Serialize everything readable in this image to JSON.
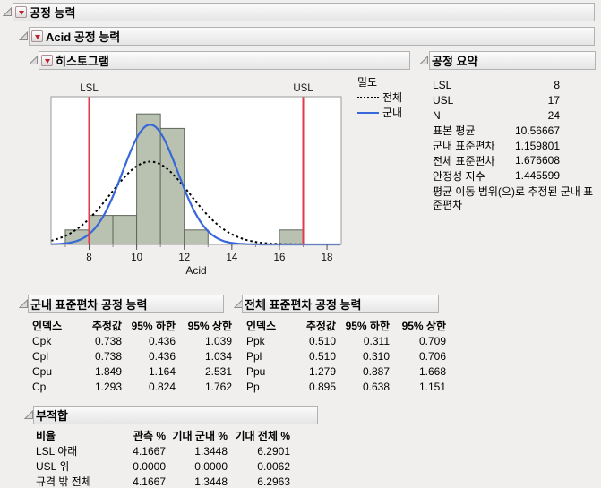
{
  "outline": {
    "level1": "공정 능력",
    "level2": "Acid 공정 능력",
    "histogram": "히스토그램",
    "summary": "공정 요약",
    "within_capability": "군내 표준편차 공정 능력",
    "overall_capability": "전체 표준편차 공정 능력",
    "nonconformance": "부적합"
  },
  "chart_data": {
    "type": "bar",
    "subtype": "histogram",
    "xlabel": "Acid",
    "x_range": [
      6.4,
      18.6
    ],
    "x_ticks": [
      8,
      10,
      12,
      14,
      16,
      18
    ],
    "minor_tick_step": 1,
    "bin_width": 1,
    "bins": [
      {
        "start": 7,
        "count": 1
      },
      {
        "start": 8,
        "count": 2
      },
      {
        "start": 9,
        "count": 2
      },
      {
        "start": 10,
        "count": 9
      },
      {
        "start": 11,
        "count": 8
      },
      {
        "start": 12,
        "count": 1
      },
      {
        "start": 16,
        "count": 1
      }
    ],
    "n": 24,
    "lsl": {
      "label": "LSL",
      "value": 8
    },
    "usl": {
      "label": "USL",
      "value": 17
    },
    "curves": [
      {
        "name": "전체",
        "mean": 10.56667,
        "sd": 1.676608,
        "style": "dotted",
        "color": "#000000"
      },
      {
        "name": "군내",
        "mean": 10.56667,
        "sd": 1.159801,
        "style": "solid",
        "color": "#3767d9"
      }
    ],
    "legend_title": "밀도",
    "colors": {
      "bar_fill": "#b9c2b0",
      "bar_stroke": "#5f675c",
      "spec_line": "#e23a4c",
      "frame": "#9a9a9a"
    }
  },
  "summary": {
    "rows": [
      {
        "label": "LSL",
        "value": "8"
      },
      {
        "label": "USL",
        "value": "17"
      },
      {
        "label": "N",
        "value": "24"
      },
      {
        "label": "표본 평균",
        "value": "10.56667"
      },
      {
        "label": "군내 표준편차",
        "value": "1.159801"
      },
      {
        "label": "전체 표준편차",
        "value": "1.676608"
      },
      {
        "label": "안정성 지수",
        "value": "1.445599"
      }
    ],
    "note": "평균 이동 범위(으)로 추정된 군내 표준편차"
  },
  "within_table": {
    "headers": [
      "인덱스",
      "추정값",
      "95% 하한",
      "95% 상한"
    ],
    "rows": [
      [
        "Cpk",
        "0.738",
        "0.436",
        "1.039"
      ],
      [
        "Cpl",
        "0.738",
        "0.436",
        "1.034"
      ],
      [
        "Cpu",
        "1.849",
        "1.164",
        "2.531"
      ],
      [
        "Cp",
        "1.293",
        "0.824",
        "1.762"
      ]
    ]
  },
  "overall_table": {
    "headers": [
      "인덱스",
      "추정값",
      "95% 하한",
      "95% 상한"
    ],
    "rows": [
      [
        "Ppk",
        "0.510",
        "0.311",
        "0.709"
      ],
      [
        "Ppl",
        "0.510",
        "0.310",
        "0.706"
      ],
      [
        "Ppu",
        "1.279",
        "0.887",
        "1.668"
      ],
      [
        "Pp",
        "0.895",
        "0.638",
        "1.151"
      ]
    ]
  },
  "nonconformance_table": {
    "headers": [
      "비율",
      "관측 %",
      "기대 군내 %",
      "기대 전체 %"
    ],
    "rows": [
      [
        "LSL 아래",
        "4.1667",
        "1.3448",
        "6.2901"
      ],
      [
        "USL 위",
        "0.0000",
        "0.0000",
        "0.0062"
      ],
      [
        "규격 밖 전체",
        "4.1667",
        "1.3448",
        "6.2963"
      ]
    ]
  }
}
